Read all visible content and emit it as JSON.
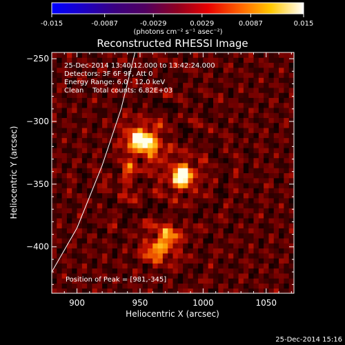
{
  "colorbar": {
    "tick_labels": [
      "-0.015",
      "-0.0087",
      "-0.0029",
      "0.0029",
      "0.0087",
      "0.015"
    ],
    "ticks": [
      -0.015,
      -0.0087,
      -0.0029,
      0.0029,
      0.0087,
      0.015
    ],
    "range": [
      -0.015,
      0.015
    ],
    "unit_label": "(photons cm⁻² s⁻¹ asec⁻²)"
  },
  "chart_data": {
    "type": "heatmap",
    "title": "Reconstructed RHESSI Image",
    "xlabel": "Heliocentric X (arcsec)",
    "ylabel": "Heliocentric Y (arcsec)",
    "xlim": [
      880,
      1072
    ],
    "ylim": [
      -437,
      -245
    ],
    "x_ticks": [
      900,
      950,
      1000,
      1050
    ],
    "y_ticks": [
      -250,
      -300,
      -350,
      -400
    ],
    "colormap": "rainbow-dark-to-white",
    "sources": [
      {
        "x": 981,
        "y": -345,
        "peak": 1.0
      },
      {
        "x": 955,
        "y": -320,
        "peak": 0.75
      },
      {
        "x": 945,
        "y": -315,
        "peak": 0.6
      },
      {
        "x": 970,
        "y": -395,
        "peak": 0.55
      },
      {
        "x": 960,
        "y": -405,
        "peak": 0.45
      },
      {
        "x": 940,
        "y": -345,
        "peak": 0.3
      }
    ],
    "limb_line": [
      [
        880,
        -420
      ],
      [
        900,
        -385
      ],
      [
        920,
        -335
      ],
      [
        935,
        -290
      ],
      [
        946,
        -245
      ]
    ],
    "annotations": [
      "25-Dec-2014 13:40:12.000 to 13:42:24.000",
      "Detectors: 3F 6F 9F, Att 0",
      "Energy Range: 6.0 - 12.0 keV",
      "Clean    Total counts: 6.82E+03",
      "Position of Peak = [981,-345]"
    ]
  },
  "footer": {
    "timestamp": "25-Dec-2014 15:16"
  }
}
